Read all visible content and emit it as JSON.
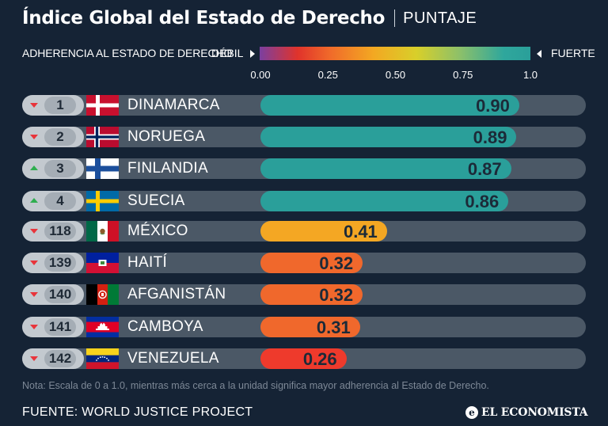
{
  "header": {
    "title": "Índice Global del Estado de Derecho",
    "subtitle": "PUNTAJE"
  },
  "legend": {
    "label": "ADHERENCIA AL ESTADO DE DERECHO",
    "weak": "DÉBIL",
    "strong": "FUERTE"
  },
  "colors": {
    "background": "#152335",
    "teal": "#2a9f9a",
    "orange": "#f0682c",
    "amber": "#f4a723",
    "red_bar": "#ee3a2c",
    "track": "#4b5866",
    "rank_down": "#e8343b",
    "rank_up": "#2fae4f"
  },
  "chart_data": {
    "type": "bar",
    "orientation": "horizontal",
    "title": "Índice Global del Estado de Derecho",
    "subtitle": "PUNTAJE",
    "xlim": [
      0,
      1.0
    ],
    "x_ticks": [
      "0.00",
      "0.25",
      "0.50",
      "0.75",
      "1.0"
    ],
    "tick_values": [
      0,
      0.25,
      0.5,
      0.75,
      1.0
    ],
    "categories": [
      "DINAMARCA",
      "NORUEGA",
      "FINLANDIA",
      "SUECIA",
      "MÉXICO",
      "HAITÍ",
      "AFGANISTÁN",
      "CAMBOYA",
      "VENEZUELA"
    ],
    "values": [
      0.9,
      0.89,
      0.87,
      0.86,
      0.41,
      0.32,
      0.32,
      0.31,
      0.26
    ],
    "labels": [
      "0.90",
      "0.89",
      "0.87",
      "0.86",
      "0.41",
      "0.32",
      "0.32",
      "0.31",
      "0.26"
    ],
    "ranks": [
      "1",
      "2",
      "3",
      "4",
      "118",
      "139",
      "140",
      "141",
      "142"
    ],
    "trend": [
      "down",
      "down",
      "up",
      "up",
      "down",
      "down",
      "down",
      "down",
      "down"
    ],
    "flags": [
      "flag-denmark",
      "flag-norway",
      "flag-finland",
      "flag-sweden",
      "flag-mexico",
      "flag-haiti",
      "flag-afghanistan",
      "flag-cambodia",
      "flag-venezuela"
    ]
  },
  "footer": {
    "note": "Nota: Escala de 0 a 1.0, mientras más cerca a la unidad significa mayor adherencia al Estado de Derecho.",
    "source": "FUENTE: WORLD JUSTICE PROJECT",
    "brand_initial": "e",
    "brand": "EL ECONOMISTA"
  }
}
